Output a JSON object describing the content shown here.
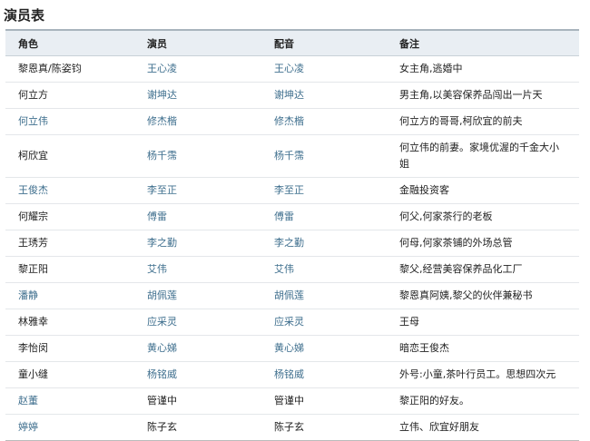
{
  "title": "演员表",
  "headers": [
    "角色",
    "演员",
    "配音",
    "备注"
  ],
  "link_color": "#3f6f8e",
  "rows": [
    {
      "role": "黎恩真/陈姿钧",
      "actor": "王心凌",
      "voice": "王心凌",
      "note": "女主角,逃婚中",
      "links": [
        false,
        true,
        true
      ]
    },
    {
      "role": "何立方",
      "actor": "谢坤达",
      "voice": "谢坤达",
      "note": "男主角,以美容保养品闯出一片天",
      "links": [
        false,
        true,
        true
      ]
    },
    {
      "role": "何立伟",
      "actor": "修杰楷",
      "voice": "修杰楷",
      "note": "何立方的哥哥,柯欣宜的前夫",
      "links": [
        true,
        true,
        true
      ]
    },
    {
      "role": "柯欣宜",
      "actor": "杨千霈",
      "voice": "杨千霈",
      "note": "何立伟的前妻。家境优渥的千金大小姐",
      "links": [
        false,
        true,
        true
      ]
    },
    {
      "role": "王俊杰",
      "actor": "李至正",
      "voice": "李至正",
      "note": "金融投资客",
      "links": [
        true,
        true,
        true
      ]
    },
    {
      "role": "何耀宗",
      "actor": "傅雷",
      "voice": "傅雷",
      "note": "何父,何家茶行的老板",
      "links": [
        false,
        true,
        true
      ]
    },
    {
      "role": "王琇芳",
      "actor": "李之勤",
      "voice": "李之勤",
      "note": "何母,何家茶铺的外场总管",
      "links": [
        false,
        true,
        true
      ]
    },
    {
      "role": "黎正阳",
      "actor": "艾伟",
      "voice": "艾伟",
      "note": "黎父,经营美容保养品化工厂",
      "links": [
        false,
        true,
        true
      ]
    },
    {
      "role": "潘静",
      "actor": "胡佩莲",
      "voice": "胡佩莲",
      "note": "黎恩真阿姨,黎父的伙伴兼秘书",
      "links": [
        true,
        true,
        true
      ]
    },
    {
      "role": "林雅幸",
      "actor": "应采灵",
      "voice": "应采灵",
      "note": "王母",
      "links": [
        false,
        true,
        true
      ]
    },
    {
      "role": "李怡闵",
      "actor": "黄心娣",
      "voice": "黄心娣",
      "note": "暗恋王俊杰",
      "links": [
        false,
        true,
        true
      ]
    },
    {
      "role": "童小缝",
      "actor": "杨铭威",
      "voice": "杨铭威",
      "note": "外号:小童,茶叶行员工。思想四次元",
      "links": [
        false,
        true,
        true
      ]
    },
    {
      "role": "赵董",
      "actor": "管谨中",
      "voice": "管谨中",
      "note": "黎正阳的好友。",
      "links": [
        true,
        false,
        false
      ]
    },
    {
      "role": "婷婷",
      "actor": "陈子玄",
      "voice": "陈子玄",
      "note": "立伟、欣宜好朋友",
      "links": [
        true,
        false,
        false
      ]
    }
  ]
}
